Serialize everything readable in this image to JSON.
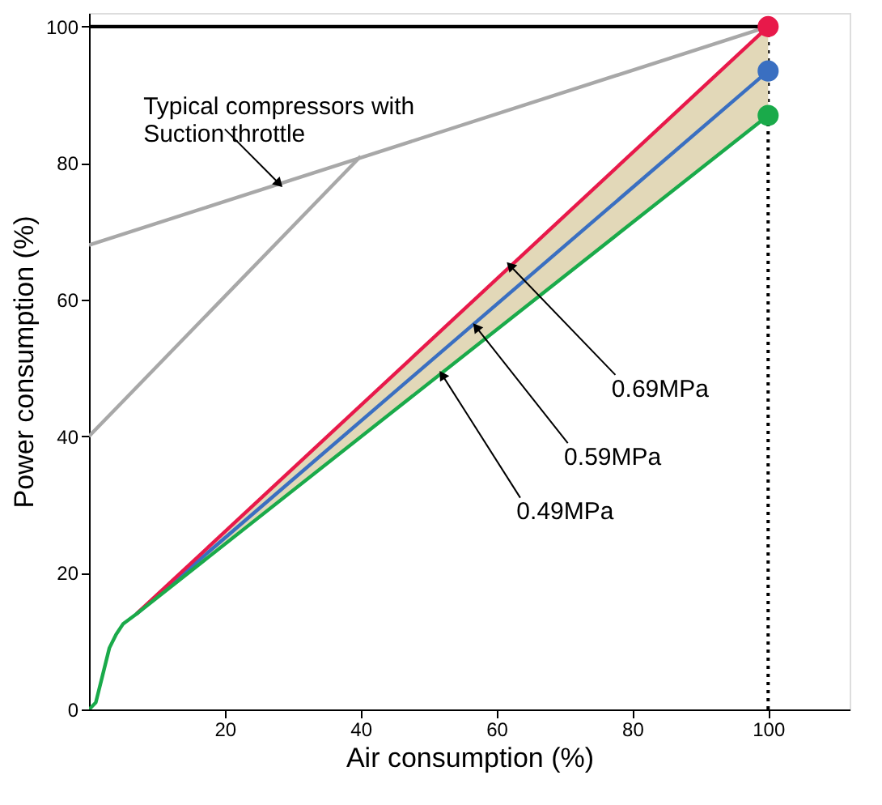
{
  "chart_data": {
    "type": "line",
    "xlabel": "Air consumption (%)",
    "ylabel": "Power consumption (%)",
    "xlim": [
      0,
      112
    ],
    "ylim": [
      0,
      102
    ],
    "xticks": [
      20,
      40,
      60,
      80,
      100
    ],
    "yticks": [
      0,
      20,
      40,
      60,
      80,
      100
    ],
    "grid": false,
    "series": [
      {
        "color": "#a8a8a8",
        "x": [
          0,
          100
        ],
        "values": [
          68,
          100
        ]
      },
      {
        "color": "#a8a8a8",
        "x": [
          0,
          40
        ],
        "values": [
          40,
          81
        ]
      },
      {
        "color": "#000000",
        "x": [
          0,
          100
        ],
        "values": [
          100,
          100
        ]
      },
      {
        "color": "#000000",
        "line_style": "dotted",
        "x": [
          100,
          100
        ],
        "values": [
          0,
          100
        ]
      },
      {
        "color": "#3a6fc1",
        "x": [
          7,
          100
        ],
        "values": [
          14,
          93.5
        ],
        "lower": [
          14,
          87
        ],
        "upper": [
          14,
          100
        ]
      },
      {
        "color": "#e8194a",
        "x": [
          7,
          100
        ],
        "values": [
          14,
          100
        ]
      },
      {
        "color": "#1aaa4a",
        "x": [
          0,
          1,
          2,
          3,
          4,
          5,
          7,
          100
        ],
        "values": [
          0,
          1,
          5,
          9,
          11,
          12.5,
          14,
          87
        ]
      },
      {
        "type": "scatter",
        "color": "#e8194a",
        "x": [
          100
        ],
        "values": [
          100
        ]
      },
      {
        "type": "scatter",
        "color": "#3a6fc1",
        "x": [
          100
        ],
        "values": [
          93.5
        ]
      },
      {
        "type": "scatter",
        "color": "#1aaa4a",
        "x": [
          100
        ],
        "values": [
          87
        ]
      }
    ],
    "annotations": [
      {
        "text": "Typical compressors with\nSuction throttle",
        "x": 28,
        "y": 77
      },
      {
        "text": "0.69MPa",
        "x": 62,
        "y": 65
      },
      {
        "text": "0.59MPa",
        "x": 57,
        "y": 56
      },
      {
        "text": "0.49MPa",
        "x": 52,
        "y": 49
      }
    ]
  }
}
